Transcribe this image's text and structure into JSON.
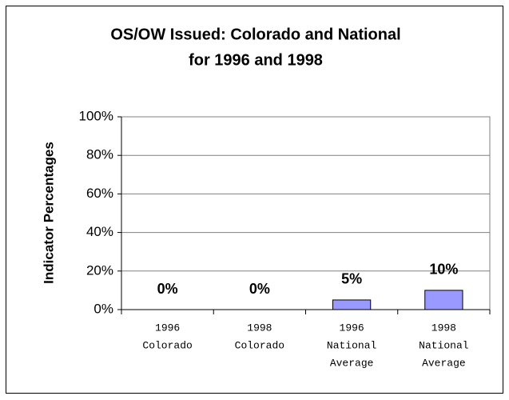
{
  "chart_data": {
    "type": "bar",
    "title": [
      "OS/OW Issued: Colorado and National",
      "for 1996 and 1998"
    ],
    "y_label": "Indicator Percentages",
    "categories": [
      [
        "1996",
        "Colorado"
      ],
      [
        "1998",
        "Colorado"
      ],
      [
        "1996",
        "National",
        "Average"
      ],
      [
        "1998",
        "National",
        "Average"
      ]
    ],
    "values": [
      0,
      0,
      5,
      10
    ],
    "value_labels": [
      "0%",
      "0%",
      "5%",
      "10%"
    ],
    "color": "#9999ff",
    "ylim": [
      0,
      100
    ],
    "yticks": [
      {
        "value": 0,
        "label": "0%"
      },
      {
        "value": 20,
        "label": "20%"
      },
      {
        "value": 40,
        "label": "40%"
      },
      {
        "value": 60,
        "label": "60%"
      },
      {
        "value": 80,
        "label": "80%"
      },
      {
        "value": 100,
        "label": "100%"
      }
    ],
    "grid": true
  }
}
